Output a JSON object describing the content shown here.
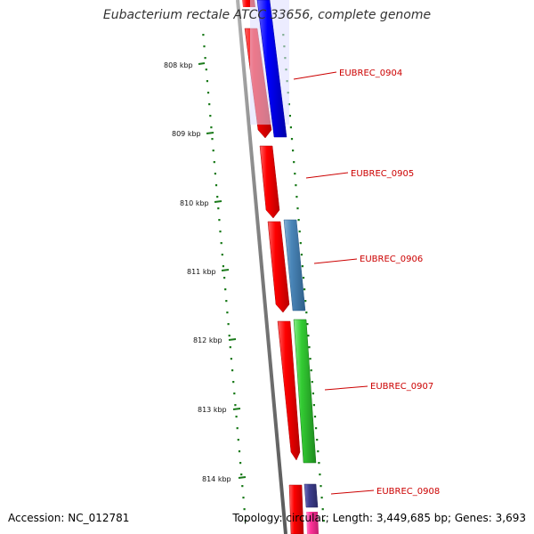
{
  "title": "Eubacterium rectale ATCC 33656, complete genome",
  "footer": {
    "accession": "Accession: NC_012781",
    "topology": "Topology: circular; Length: 3,449,685 bp; Genes: 3,693"
  },
  "colors": {
    "backbone": "#808080",
    "tick": "#1a7a1a",
    "orf": "#ff0000",
    "label": "#cc0000"
  },
  "coordinate_labels": [
    {
      "kbp": 808,
      "text": "808 kbp"
    },
    {
      "kbp": 809,
      "text": "809 kbp"
    },
    {
      "kbp": 810,
      "text": "810 kbp"
    },
    {
      "kbp": 811,
      "text": "811 kbp"
    },
    {
      "kbp": 812,
      "text": "812 kbp"
    },
    {
      "kbp": 813,
      "text": "813 kbp"
    },
    {
      "kbp": 814,
      "text": "814 kbp"
    }
  ],
  "genes": [
    {
      "label": "EUBREC_0904",
      "color": "#0000ff"
    },
    {
      "label": "EUBREC_0905",
      "color": null
    },
    {
      "label": "EUBREC_0906",
      "color": "#4a86b8"
    },
    {
      "label": "EUBREC_0907",
      "color": "#33cc33"
    },
    {
      "label": "EUBREC_0908",
      "color": "#3f3f8f"
    }
  ]
}
